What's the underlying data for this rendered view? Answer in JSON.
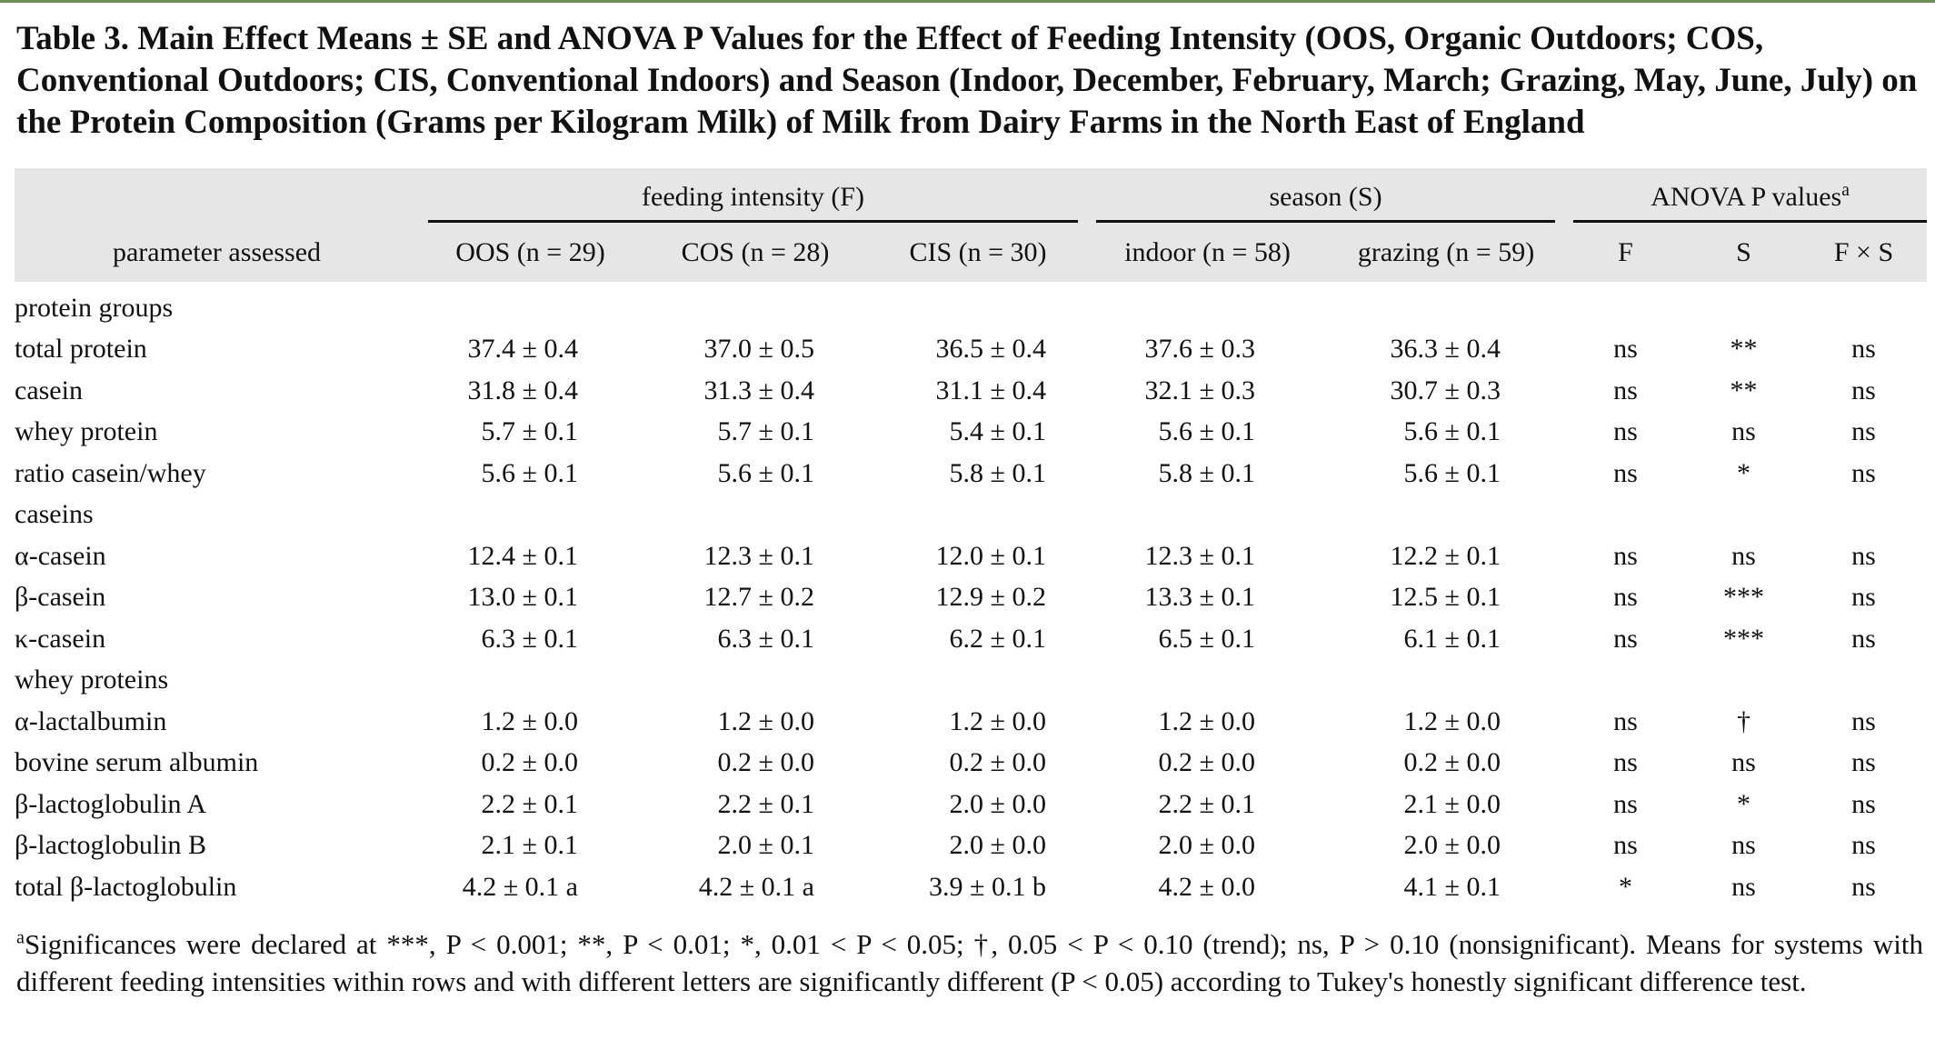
{
  "caption": "Table 3. Main Effect Means ± SE and ANOVA P Values for the Effect of Feeding Intensity (OOS, Organic Outdoors; COS, Conventional Outdoors; CIS, Conventional Indoors) and Season (Indoor, December, February, March; Grazing, May, June, July) on the Protein Composition (Grams per Kilogram Milk) of Milk from Dairy Farms in the North East of England",
  "header": {
    "group_feeding": "feeding intensity (F)",
    "group_season": "season (S)",
    "group_anova": "ANOVA P values",
    "group_anova_sup": "a",
    "param_label": "parameter assessed",
    "col_oos": "OOS (n = 29)",
    "col_cos": "COS (n = 28)",
    "col_cis": "CIS (n = 30)",
    "col_indoor": "indoor (n = 58)",
    "col_grazing": "grazing (n = 59)",
    "col_f": "F",
    "col_s": "S",
    "col_fxs": "F × S"
  },
  "groups": {
    "protein_groups": "protein groups",
    "caseins": "caseins",
    "whey_proteins": "whey proteins"
  },
  "rows": [
    {
      "name": "total protein",
      "oos": "37.4 ± 0.4",
      "cos": "37.0 ± 0.5",
      "cis": "36.5 ± 0.4",
      "indoor": "37.6 ± 0.3",
      "grazing": "36.3 ± 0.4",
      "f": "ns",
      "s": "**",
      "fxs": "ns"
    },
    {
      "name": "casein",
      "oos": "31.8 ± 0.4",
      "cos": "31.3 ± 0.4",
      "cis": "31.1 ± 0.4",
      "indoor": "32.1 ± 0.3",
      "grazing": "30.7 ± 0.3",
      "f": "ns",
      "s": "**",
      "fxs": "ns"
    },
    {
      "name": "whey protein",
      "oos": "5.7 ± 0.1",
      "cos": "5.7 ± 0.1",
      "cis": "5.4 ± 0.1",
      "indoor": "5.6 ± 0.1",
      "grazing": "5.6 ± 0.1",
      "f": "ns",
      "s": "ns",
      "fxs": "ns"
    },
    {
      "name": "ratio casein/whey",
      "oos": "5.6 ± 0.1",
      "cos": "5.6 ± 0.1",
      "cis": "5.8 ± 0.1",
      "indoor": "5.8 ± 0.1",
      "grazing": "5.6 ± 0.1",
      "f": "ns",
      "s": "*",
      "fxs": "ns"
    },
    {
      "name": "α-casein",
      "oos": "12.4 ± 0.1",
      "cos": "12.3 ± 0.1",
      "cis": "12.0 ± 0.1",
      "indoor": "12.3 ± 0.1",
      "grazing": "12.2 ± 0.1",
      "f": "ns",
      "s": "ns",
      "fxs": "ns"
    },
    {
      "name": "β-casein",
      "oos": "13.0 ± 0.1",
      "cos": "12.7 ± 0.2",
      "cis": "12.9 ± 0.2",
      "indoor": "13.3 ± 0.1",
      "grazing": "12.5 ± 0.1",
      "f": "ns",
      "s": "***",
      "fxs": "ns"
    },
    {
      "name": "κ-casein",
      "oos": "6.3 ± 0.1",
      "cos": "6.3 ± 0.1",
      "cis": "6.2 ± 0.1",
      "indoor": "6.5 ± 0.1",
      "grazing": "6.1 ± 0.1",
      "f": "ns",
      "s": "***",
      "fxs": "ns"
    },
    {
      "name": "α-lactalbumin",
      "oos": "1.2 ± 0.0",
      "cos": "1.2 ± 0.0",
      "cis": "1.2 ± 0.0",
      "indoor": "1.2 ± 0.0",
      "grazing": "1.2 ± 0.0",
      "f": "ns",
      "s": "†",
      "fxs": "ns"
    },
    {
      "name": "bovine serum albumin",
      "oos": "0.2 ± 0.0",
      "cos": "0.2 ± 0.0",
      "cis": "0.2 ± 0.0",
      "indoor": "0.2 ± 0.0",
      "grazing": "0.2 ± 0.0",
      "f": "ns",
      "s": "ns",
      "fxs": "ns"
    },
    {
      "name": "β-lactoglobulin A",
      "oos": "2.2 ± 0.1",
      "cos": "2.2 ± 0.1",
      "cis": "2.0 ± 0.0",
      "indoor": "2.2 ± 0.1",
      "grazing": "2.1 ± 0.0",
      "f": "ns",
      "s": "*",
      "fxs": "ns"
    },
    {
      "name": "β-lactoglobulin B",
      "oos": "2.1 ± 0.1",
      "cos": "2.0 ± 0.1",
      "cis": "2.0 ± 0.0",
      "indoor": "2.0 ± 0.0",
      "grazing": "2.0 ± 0.0",
      "f": "ns",
      "s": "ns",
      "fxs": "ns"
    },
    {
      "name": "total β-lactoglobulin",
      "oos": "4.2 ± 0.1 a",
      "cos": "4.2 ± 0.1 a",
      "cis": "3.9 ± 0.1 b",
      "indoor": "4.2 ± 0.0",
      "grazing": "4.1 ± 0.1",
      "f": "*",
      "s": "ns",
      "fxs": "ns"
    }
  ],
  "footnote_sup": "a",
  "footnote": "Significances were declared at ***, P < 0.001; **, P < 0.01; *, 0.01 < P < 0.05; †, 0.05 < P < 0.10 (trend); ns, P > 0.10 (nonsignificant). Means for systems with different feeding intensities within rows and with different letters are significantly different (P < 0.05) according to Tukey's honestly significant difference test."
}
